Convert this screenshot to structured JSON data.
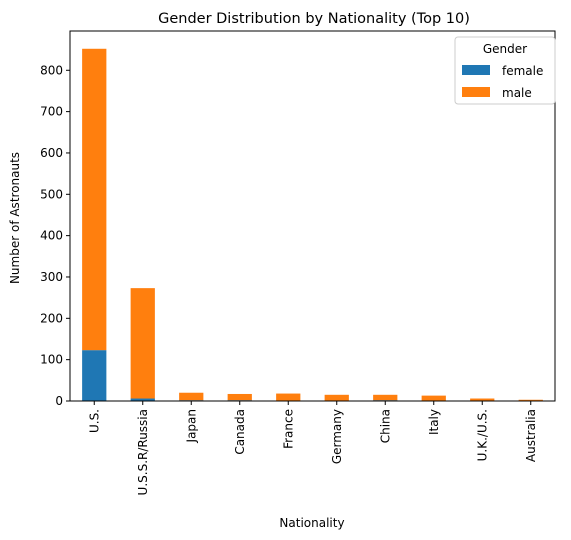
{
  "chart_data": {
    "type": "bar",
    "stacked": true,
    "title": "Gender Distribution by Nationality (Top 10)",
    "xlabel": "Nationality",
    "ylabel": "Number of Astronauts",
    "categories": [
      "U.S.",
      "U.S.S.R/Russia",
      "Japan",
      "Canada",
      "France",
      "Germany",
      "China",
      "Italy",
      "U.K./U.S.",
      "Australia"
    ],
    "series": [
      {
        "name": "female",
        "color": "#1f77b4",
        "values": [
          123,
          6,
          2,
          2,
          1,
          0,
          2,
          1,
          1,
          0
        ]
      },
      {
        "name": "male",
        "color": "#ff7f0e",
        "values": [
          729,
          267,
          18,
          15,
          17,
          15,
          13,
          12,
          5,
          3
        ]
      }
    ],
    "ylim": [
      0,
      895
    ],
    "yticks": [
      0,
      100,
      200,
      300,
      400,
      500,
      600,
      700,
      800
    ],
    "legend": {
      "title": "Gender",
      "placement": "top-right"
    },
    "grid": false
  }
}
